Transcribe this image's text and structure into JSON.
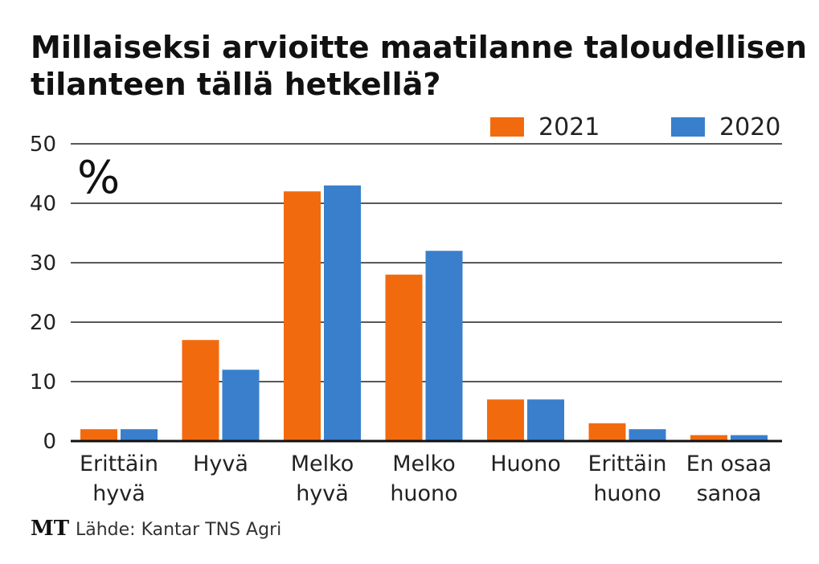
{
  "chart_data": {
    "type": "bar",
    "title": [
      "Millaiseksi arvioitte maatilanne taloudellisen",
      "tilanteen tällä hetkellä?"
    ],
    "unit": "%",
    "categories": [
      [
        "Erittäin",
        "hyvä"
      ],
      [
        "Hyvä"
      ],
      [
        "Melko",
        "hyvä"
      ],
      [
        "Melko",
        "huono"
      ],
      [
        "Huono"
      ],
      [
        "Erittäin",
        "huono"
      ],
      [
        "En osaa",
        "sanoa"
      ]
    ],
    "series": [
      {
        "name": "2021",
        "color": "#f26a0e",
        "values": [
          2,
          17,
          42,
          28,
          7,
          3,
          1
        ]
      },
      {
        "name": "2020",
        "color": "#3a7fcc",
        "values": [
          2,
          12,
          43,
          32,
          7,
          2,
          1
        ]
      }
    ],
    "ylim": [
      0,
      50
    ],
    "yticks": [
      "0",
      "10",
      "20",
      "30",
      "40",
      "50"
    ],
    "grid": true,
    "legend_position": "top-right",
    "source": "Lähde: Kantar TNS Agri",
    "logo": "MT"
  }
}
